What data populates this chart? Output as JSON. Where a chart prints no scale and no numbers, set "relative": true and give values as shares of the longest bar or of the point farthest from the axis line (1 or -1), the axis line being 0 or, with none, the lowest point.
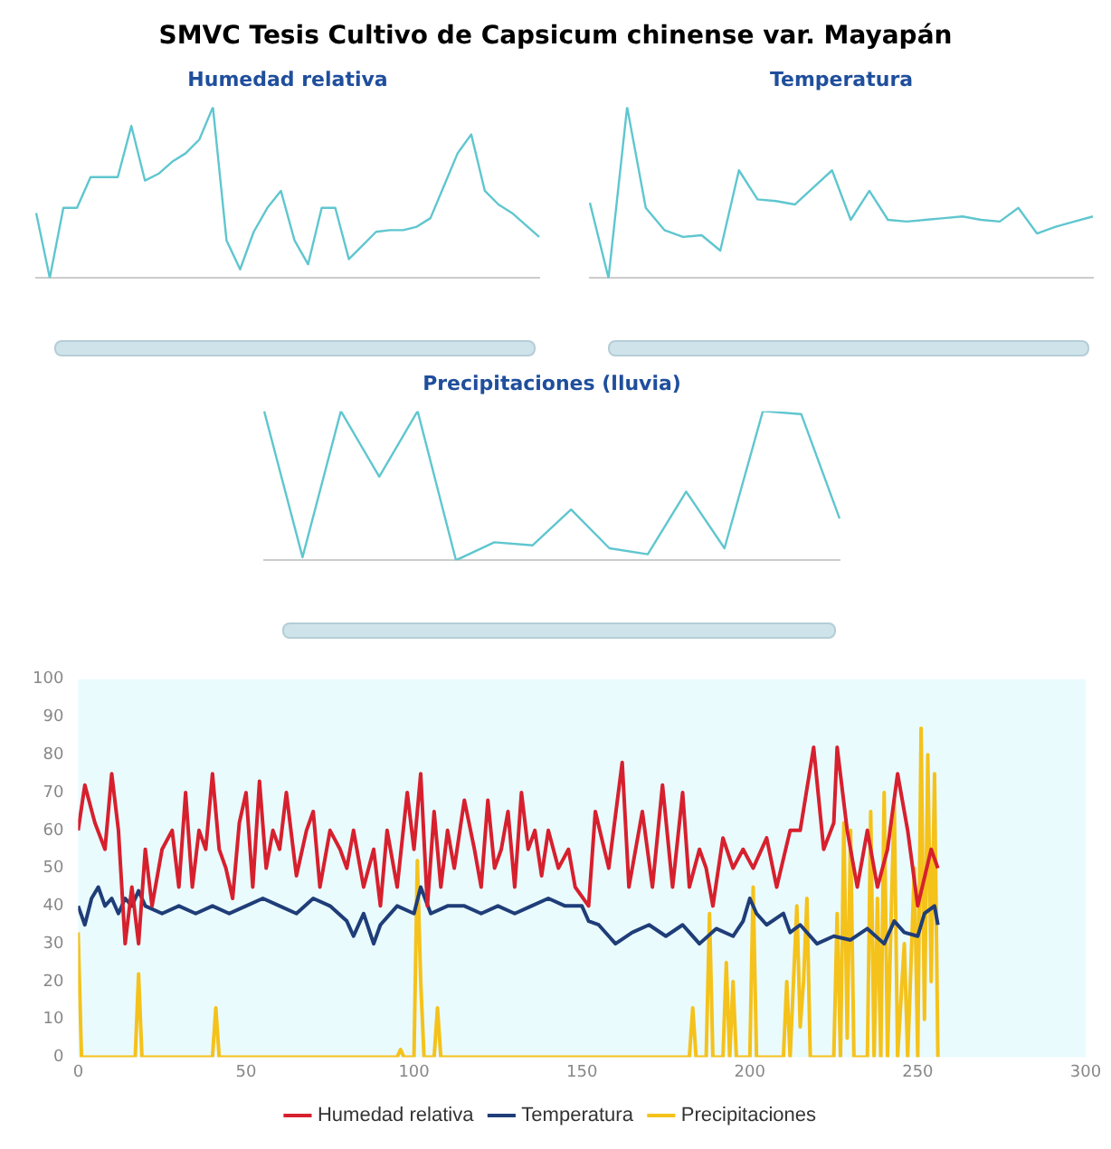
{
  "chart_data": [
    {
      "type": "other",
      "title": "SMVC Tesis Cultivo de Capsicum chinense var. Mayapán"
    },
    {
      "type": "line",
      "title": "Humedad relativa",
      "relative": true,
      "color": "#5fc6cf",
      "categories": [
        null,
        null,
        null,
        null,
        null,
        null,
        null,
        null,
        null,
        null,
        null,
        null,
        null,
        null,
        null,
        null,
        null,
        null,
        null,
        null,
        null,
        null,
        null,
        null,
        null,
        null,
        null,
        null,
        null,
        null,
        null,
        null,
        null,
        null,
        null,
        null,
        null,
        null
      ],
      "values": [
        0.38,
        0,
        0.41,
        0.41,
        0.59,
        0.59,
        0.59,
        0.89,
        0.57,
        0.61,
        0.68,
        0.73,
        0.81,
        1,
        0.22,
        0.05,
        0.27,
        0.41,
        0.51,
        0.22,
        0.08,
        0.41,
        0.41,
        0.11,
        0.19,
        0.27,
        0.28,
        0.28,
        0.3,
        0.35,
        0.54,
        0.73,
        0.84,
        0.51,
        0.43,
        0.38,
        0.31,
        0.24
      ]
    },
    {
      "type": "line",
      "title": "Temperatura",
      "relative": true,
      "color": "#5fc6cf",
      "categories": [
        null,
        null,
        null,
        null,
        null,
        null,
        null,
        null,
        null,
        null,
        null,
        null,
        null,
        null,
        null,
        null,
        null,
        null,
        null,
        null,
        null,
        null,
        null,
        null,
        null,
        null,
        null,
        null
      ],
      "values": [
        0.44,
        0,
        1,
        0.41,
        0.28,
        0.24,
        0.25,
        0.16,
        0.63,
        0.46,
        0.45,
        0.43,
        0.53,
        0.63,
        0.34,
        0.51,
        0.34,
        0.33,
        0.34,
        0.35,
        0.36,
        0.34,
        0.33,
        0.41,
        0.26,
        0.3,
        0.33,
        0.36
      ]
    },
    {
      "type": "line",
      "title": "Precipitaciones (lluvia)",
      "relative": true,
      "color": "#5fc6cf",
      "categories": [
        null,
        null,
        null,
        null,
        null,
        null,
        null,
        null,
        null,
        null,
        null,
        null,
        null,
        null,
        null,
        null
      ],
      "values": [
        1,
        0.02,
        1,
        0.56,
        1,
        0,
        0.12,
        0.1,
        0.34,
        0.08,
        0.04,
        0.46,
        0.08,
        1,
        0.98,
        0.28
      ]
    },
    {
      "type": "line",
      "legend": "bottom",
      "xlim": [
        0,
        300
      ],
      "xticks": [
        0,
        50,
        100,
        150,
        200,
        250,
        300
      ],
      "ylim": [
        0,
        100
      ],
      "yticks": [
        0,
        10,
        20,
        30,
        40,
        50,
        60,
        70,
        80,
        90,
        100
      ],
      "series": [
        {
          "name": "Humedad relativa",
          "color": "#d7202e",
          "x": [
            0,
            2,
            5,
            8,
            10,
            12,
            14,
            16,
            18,
            20,
            22,
            25,
            28,
            30,
            32,
            34,
            36,
            38,
            40,
            42,
            44,
            46,
            48,
            50,
            52,
            54,
            56,
            58,
            60,
            62,
            65,
            68,
            70,
            72,
            75,
            78,
            80,
            82,
            85,
            88,
            90,
            92,
            95,
            98,
            100,
            102,
            104,
            106,
            108,
            110,
            112,
            115,
            118,
            120,
            122,
            124,
            126,
            128,
            130,
            132,
            134,
            136,
            138,
            140,
            143,
            146,
            148,
            152,
            154,
            158,
            162,
            164,
            168,
            171,
            174,
            177,
            180,
            182,
            185,
            187,
            189,
            192,
            195,
            198,
            201,
            205,
            208,
            212,
            215,
            219,
            222,
            225,
            226,
            229,
            232,
            235,
            238,
            241,
            244,
            247,
            250,
            254,
            256
          ],
          "values": [
            60,
            72,
            62,
            55,
            75,
            60,
            30,
            45,
            30,
            55,
            40,
            55,
            60,
            45,
            70,
            45,
            60,
            55,
            75,
            55,
            50,
            42,
            62,
            70,
            45,
            73,
            50,
            60,
            55,
            70,
            48,
            60,
            65,
            45,
            60,
            55,
            50,
            60,
            45,
            55,
            40,
            60,
            45,
            70,
            55,
            75,
            40,
            65,
            45,
            60,
            50,
            68,
            55,
            45,
            68,
            50,
            55,
            65,
            45,
            70,
            55,
            60,
            48,
            60,
            50,
            55,
            45,
            40,
            65,
            50,
            78,
            45,
            65,
            45,
            72,
            45,
            70,
            45,
            55,
            50,
            40,
            58,
            50,
            55,
            50,
            58,
            45,
            60,
            60,
            82,
            55,
            62,
            82,
            60,
            45,
            60,
            45,
            55,
            75,
            60,
            40,
            55,
            50
          ]
        },
        {
          "name": "Temperatura",
          "color": "#1f3d78",
          "x": [
            0,
            2,
            4,
            6,
            8,
            10,
            12,
            14,
            16,
            18,
            20,
            25,
            30,
            35,
            40,
            45,
            50,
            55,
            60,
            65,
            70,
            75,
            80,
            82,
            85,
            88,
            90,
            95,
            100,
            102,
            105,
            110,
            115,
            120,
            125,
            130,
            135,
            140,
            145,
            150,
            152,
            155,
            158,
            160,
            165,
            170,
            175,
            180,
            185,
            190,
            195,
            198,
            200,
            202,
            205,
            210,
            212,
            215,
            220,
            225,
            230,
            235,
            240,
            243,
            246,
            250,
            252,
            255,
            256
          ],
          "values": [
            40,
            35,
            42,
            45,
            40,
            42,
            38,
            42,
            40,
            44,
            40,
            38,
            40,
            38,
            40,
            38,
            40,
            42,
            40,
            38,
            42,
            40,
            36,
            32,
            38,
            30,
            35,
            40,
            38,
            45,
            38,
            40,
            40,
            38,
            40,
            38,
            40,
            42,
            40,
            40,
            36,
            35,
            32,
            30,
            33,
            35,
            32,
            35,
            30,
            34,
            32,
            36,
            42,
            38,
            35,
            38,
            33,
            35,
            30,
            32,
            31,
            34,
            30,
            36,
            33,
            32,
            38,
            40,
            35
          ]
        },
        {
          "name": "Precipitaciones",
          "color": "#f5c21b",
          "x": [
            0,
            1,
            17,
            18,
            19,
            40,
            41,
            42,
            95,
            96,
            97,
            100,
            101,
            102,
            103,
            106,
            107,
            108,
            182,
            183,
            184,
            187,
            188,
            189,
            192,
            193,
            194,
            195,
            196,
            200,
            201,
            202,
            210,
            211,
            212,
            214,
            215,
            216,
            217,
            218,
            225,
            226,
            227,
            228,
            229,
            230,
            231,
            235,
            236,
            237,
            238,
            239,
            240,
            241,
            243,
            244,
            246,
            247,
            249,
            250,
            251,
            252,
            253,
            254,
            255,
            256
          ],
          "values": [
            33,
            0,
            0,
            22,
            0,
            0,
            13,
            0,
            0,
            2,
            0,
            0,
            52,
            20,
            0,
            0,
            13,
            0,
            0,
            13,
            0,
            0,
            38,
            0,
            0,
            25,
            0,
            20,
            0,
            0,
            45,
            0,
            0,
            20,
            0,
            40,
            8,
            20,
            42,
            0,
            0,
            38,
            0,
            62,
            5,
            60,
            0,
            0,
            65,
            0,
            42,
            0,
            70,
            0,
            68,
            0,
            30,
            0,
            50,
            0,
            87,
            10,
            80,
            20,
            75,
            0
          ]
        }
      ]
    }
  ]
}
